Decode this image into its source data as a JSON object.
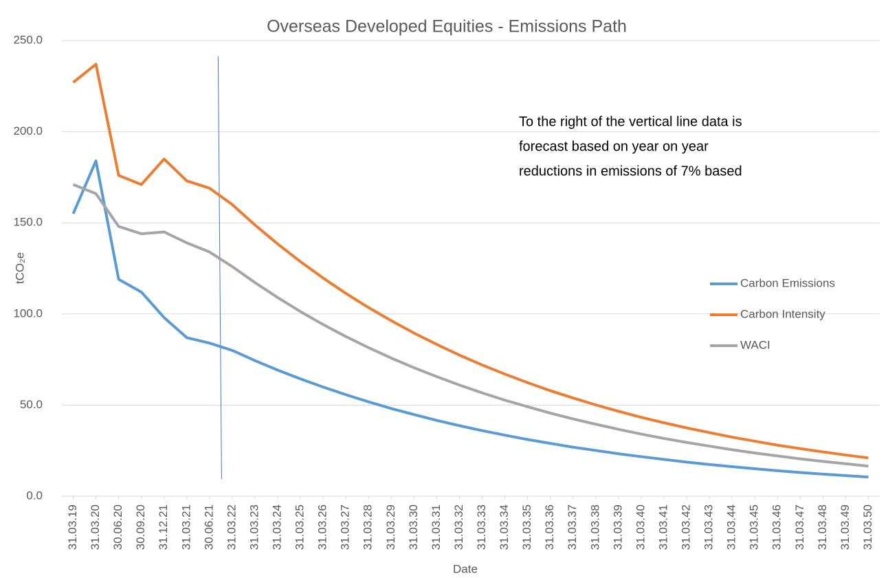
{
  "chart_data": {
    "type": "line",
    "title": "Overseas Developed Equities - Emissions Path",
    "x_label": "Date",
    "y_label": "tCO₂e",
    "annotation": [
      "To the right of the vertical line data is",
      "forecast based on year on year",
      "reductions in emissions of 7% based"
    ],
    "categories": [
      "31.03.19",
      "31.03.20",
      "30.06.20",
      "30.09.20",
      "31.12.21",
      "31.03.21",
      "30.06.21",
      "31.03.22",
      "31.03.23",
      "31.03.24",
      "31.03.25",
      "31.03.26",
      "31.03.27",
      "31.03.28",
      "31.03.29",
      "31.03.30",
      "31.03.31",
      "31.03.32",
      "31.03.33",
      "31.03.34",
      "31.03.35",
      "31.03.36",
      "31.03.37",
      "31.03.38",
      "31.03.39",
      "31.03.40",
      "31.03.41",
      "31.03.42",
      "31.03.43",
      "31.03.44",
      "31.03.45",
      "31.03.46",
      "31.03.47",
      "31.03.48",
      "31.03.49",
      "31.03.50"
    ],
    "series": [
      {
        "name": "Carbon Emissions",
        "color": "#5b9bd5",
        "values": [
          155,
          184,
          119,
          112,
          98,
          87,
          84,
          80,
          74.4,
          69.2,
          64.4,
          59.9,
          55.7,
          51.8,
          48.1,
          44.8,
          41.6,
          38.7,
          36.0,
          33.5,
          31.1,
          29.0,
          26.9,
          25.1,
          23.3,
          21.7,
          20.2,
          18.7,
          17.4,
          16.2,
          15.1,
          14.0,
          13.0,
          12.1,
          11.3,
          10.5
        ]
      },
      {
        "name": "Carbon Intensity",
        "color": "#ed7d31",
        "values": [
          227,
          237,
          176,
          171,
          185,
          173,
          169,
          160,
          148.8,
          138.4,
          128.7,
          119.7,
          111.3,
          103.5,
          96.3,
          89.5,
          83.3,
          77.4,
          72.0,
          67.0,
          62.3,
          57.9,
          53.9,
          50.1,
          46.6,
          43.3,
          40.3,
          37.5,
          34.9,
          32.4,
          30.2,
          28.0,
          26.1,
          24.3,
          22.6,
          21.0
        ]
      },
      {
        "name": "WACI",
        "color": "#a5a5a5",
        "values": [
          171,
          166,
          148,
          144,
          145,
          139,
          134,
          126,
          117.2,
          109.0,
          101.3,
          94.2,
          87.6,
          81.5,
          75.8,
          70.5,
          65.6,
          61.0,
          56.7,
          52.7,
          49.1,
          45.6,
          42.4,
          39.5,
          36.7,
          34.1,
          31.7,
          29.5,
          27.5,
          25.5,
          23.7,
          22.1,
          20.5,
          19.1,
          17.8,
          16.5
        ]
      }
    ],
    "ylim": [
      0,
      250
    ],
    "yticks": [
      {
        "value": 0,
        "label": "0.0"
      },
      {
        "value": 50,
        "label": "50.0"
      },
      {
        "value": 100,
        "label": "100.0"
      },
      {
        "value": 150,
        "label": "150.0"
      },
      {
        "value": 200,
        "label": "200.0"
      },
      {
        "value": 250,
        "label": "250.0"
      }
    ],
    "grid": true,
    "legend": "right"
  }
}
